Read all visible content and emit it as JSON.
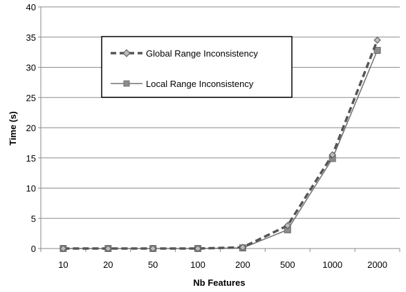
{
  "chart_data": {
    "type": "line",
    "title": "",
    "xlabel": "Nb Features",
    "ylabel": "Time (s)",
    "categories": [
      "10",
      "20",
      "50",
      "100",
      "200",
      "500",
      "1000",
      "2000"
    ],
    "ylim": [
      0,
      40
    ],
    "yticks": [
      0,
      5,
      10,
      15,
      20,
      25,
      30,
      35,
      40
    ],
    "grid": "horizontal",
    "legend_position": "top-left",
    "series": [
      {
        "name": "Global Range Inconsistency",
        "values": [
          0.0,
          0.0,
          0.0,
          0.0,
          0.2,
          3.8,
          15.5,
          34.5
        ],
        "color": "#555555",
        "style": "dashed",
        "marker": "diamond"
      },
      {
        "name": "Local Range Inconsistency",
        "values": [
          0.0,
          0.0,
          0.0,
          0.0,
          0.1,
          3.1,
          14.9,
          32.8
        ],
        "color": "#707070",
        "style": "solid",
        "marker": "square"
      }
    ]
  }
}
